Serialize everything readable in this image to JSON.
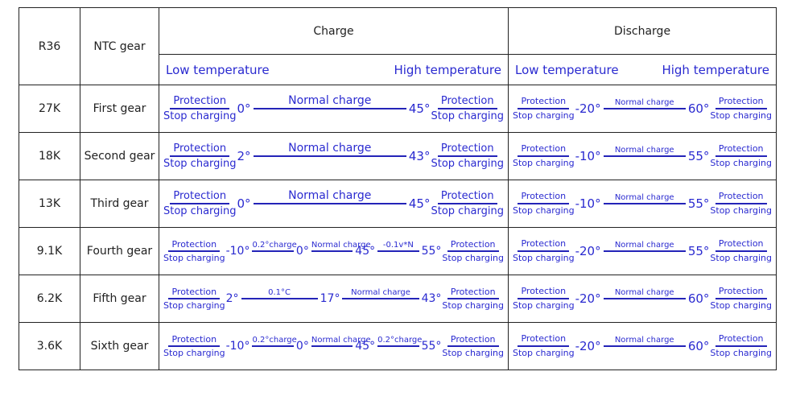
{
  "header": {
    "r36": "R36",
    "ntc_gear": "NTC gear",
    "charge": "Charge",
    "discharge": "Discharge",
    "charge_low": "Low temperature",
    "charge_high": "High temperature",
    "discharge_low": "Low temperature",
    "discharge_high": "High temperature"
  },
  "rows": [
    {
      "r36": "27K",
      "gear": "First gear",
      "charge": [
        {
          "top": "Protection",
          "bottom": "Stop charging"
        },
        {
          "temp": "0°"
        },
        {
          "line": "Normal charge"
        },
        {
          "temp": "45°"
        },
        {
          "top": "Protection",
          "bottom": "Stop charging"
        }
      ],
      "discharge": [
        {
          "top": "Protection",
          "bottom": "Stop charging"
        },
        {
          "temp": "-20°"
        },
        {
          "line": "Normal charge"
        },
        {
          "temp": "60°"
        },
        {
          "top": "Protection",
          "bottom": "Stop charging"
        }
      ]
    },
    {
      "r36": "18K",
      "gear": "Second gear",
      "charge": [
        {
          "top": "Protection",
          "bottom": "Stop charging"
        },
        {
          "temp": "2°"
        },
        {
          "line": "Normal charge"
        },
        {
          "temp": "43°"
        },
        {
          "top": "Protection",
          "bottom": "Stop charging"
        }
      ],
      "discharge": [
        {
          "top": "Protection",
          "bottom": "Stop charging"
        },
        {
          "temp": "-10°"
        },
        {
          "line": "Normal charge"
        },
        {
          "temp": "55°"
        },
        {
          "top": "Protection",
          "bottom": "Stop charging"
        }
      ]
    },
    {
      "r36": "13K",
      "gear": "Third gear",
      "charge": [
        {
          "top": "Protection",
          "bottom": "Stop charging"
        },
        {
          "temp": "0°"
        },
        {
          "line": "Normal charge"
        },
        {
          "temp": "45°"
        },
        {
          "top": "Protection",
          "bottom": "Stop charging"
        }
      ],
      "discharge": [
        {
          "top": "Protection",
          "bottom": "Stop charging"
        },
        {
          "temp": "-10°"
        },
        {
          "line": "Normal charge"
        },
        {
          "temp": "55°"
        },
        {
          "top": "Protection",
          "bottom": "Stop charging"
        }
      ]
    },
    {
      "r36": "9.1K",
      "gear": "Fourth gear",
      "charge": [
        {
          "top": "Protection",
          "bottom": "Stop charging"
        },
        {
          "temp": "-10°"
        },
        {
          "line": "0.2°charge"
        },
        {
          "temp": "0°"
        },
        {
          "line": "Normal charge"
        },
        {
          "temp": "45°"
        },
        {
          "line": "-0.1v*N"
        },
        {
          "temp": "55°"
        },
        {
          "top": "Protection",
          "bottom": "Stop charging"
        }
      ],
      "discharge": [
        {
          "top": "Protection",
          "bottom": "Stop charging"
        },
        {
          "temp": "-20°"
        },
        {
          "line": "Normal charge"
        },
        {
          "temp": "55°"
        },
        {
          "top": "Protection",
          "bottom": "Stop charging"
        }
      ]
    },
    {
      "r36": "6.2K",
      "gear": "Fifth gear",
      "charge": [
        {
          "top": "Protection",
          "bottom": "Stop charging"
        },
        {
          "temp": "2°"
        },
        {
          "line": "0.1°C"
        },
        {
          "temp": "17°"
        },
        {
          "line": "Normal charge"
        },
        {
          "temp": "43°"
        },
        {
          "top": "Protection",
          "bottom": "Stop charging"
        }
      ],
      "discharge": [
        {
          "top": "Protection",
          "bottom": "Stop charging"
        },
        {
          "temp": "-20°"
        },
        {
          "line": "Normal charge"
        },
        {
          "temp": "60°"
        },
        {
          "top": "Protection",
          "bottom": "Stop charging"
        }
      ]
    },
    {
      "r36": "3.6K",
      "gear": "Sixth gear",
      "charge": [
        {
          "top": "Protection",
          "bottom": "Stop charging"
        },
        {
          "temp": "-10°"
        },
        {
          "line": "0.2°charge"
        },
        {
          "temp": "0°"
        },
        {
          "line": "Normal charge"
        },
        {
          "temp": "45°"
        },
        {
          "line": "0.2°charge"
        },
        {
          "temp": "55°"
        },
        {
          "top": "Protection",
          "bottom": "Stop charging"
        }
      ],
      "discharge": [
        {
          "top": "Protection",
          "bottom": "Stop charging"
        },
        {
          "temp": "-20°"
        },
        {
          "line": "Normal charge"
        },
        {
          "temp": "60°"
        },
        {
          "top": "Protection",
          "bottom": "Stop charging"
        }
      ]
    }
  ]
}
